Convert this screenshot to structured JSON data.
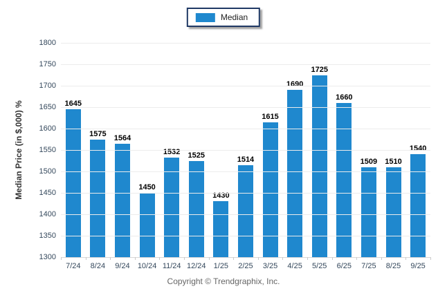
{
  "legend": {
    "label": "Median"
  },
  "footer": {
    "copyright": "Copyright © Trendgraphix, Inc."
  },
  "colors": {
    "bar": "#1f88ce",
    "gridline": "#ececec",
    "baseline": "#d6d6d6",
    "tick_label": "#33475b",
    "value_label": "#000000",
    "legend_border": "#1f3864",
    "footer_text": "#666666"
  },
  "chart_data": {
    "type": "bar",
    "title": "",
    "series_name": "Median",
    "categories": [
      "7/24",
      "8/24",
      "9/24",
      "10/24",
      "11/24",
      "12/24",
      "1/25",
      "2/25",
      "3/25",
      "4/25",
      "5/25",
      "6/25",
      "7/25",
      "8/25",
      "9/25"
    ],
    "values": [
      1645,
      1575,
      1564,
      1450,
      1532,
      1525,
      1430,
      1514,
      1615,
      1690,
      1725,
      1660,
      1509,
      1510,
      1540
    ],
    "xlabel": "",
    "ylabel": "Median Price (in $,000) %",
    "ylim": [
      1300,
      1800
    ],
    "ytick_step": 50,
    "grid": true,
    "legend_position": "top-center"
  }
}
